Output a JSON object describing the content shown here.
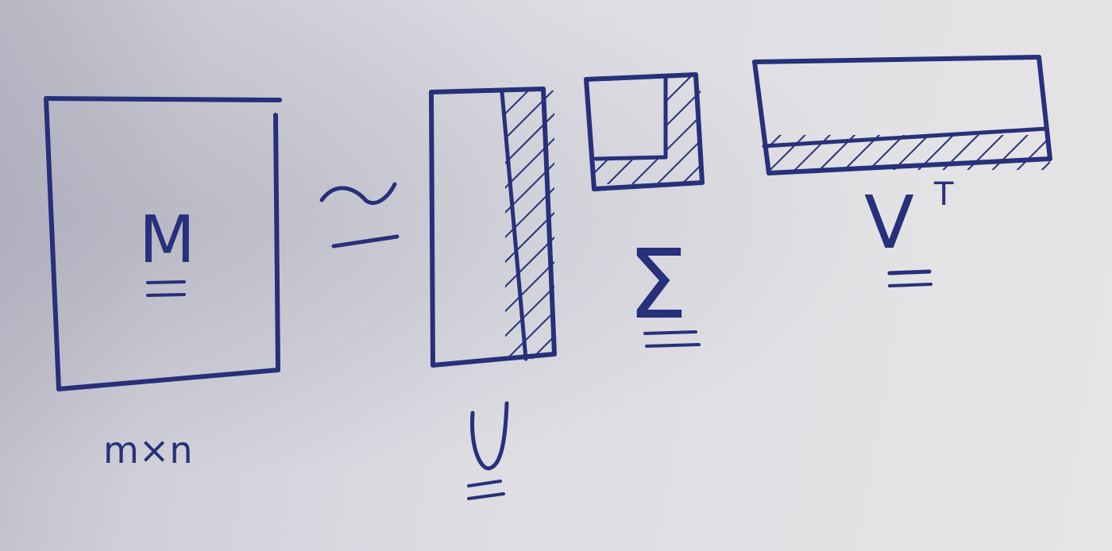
{
  "equation": {
    "lhs_matrix_symbol": "M",
    "lhs_dimensions": "m×n",
    "relation_symbol": "≃",
    "factors": [
      {
        "symbol": "U"
      },
      {
        "symbol": "Σ"
      },
      {
        "symbol": "V",
        "superscript": "T"
      }
    ]
  },
  "colors": {
    "ink": "#27307a",
    "board": "#dcdce2"
  }
}
